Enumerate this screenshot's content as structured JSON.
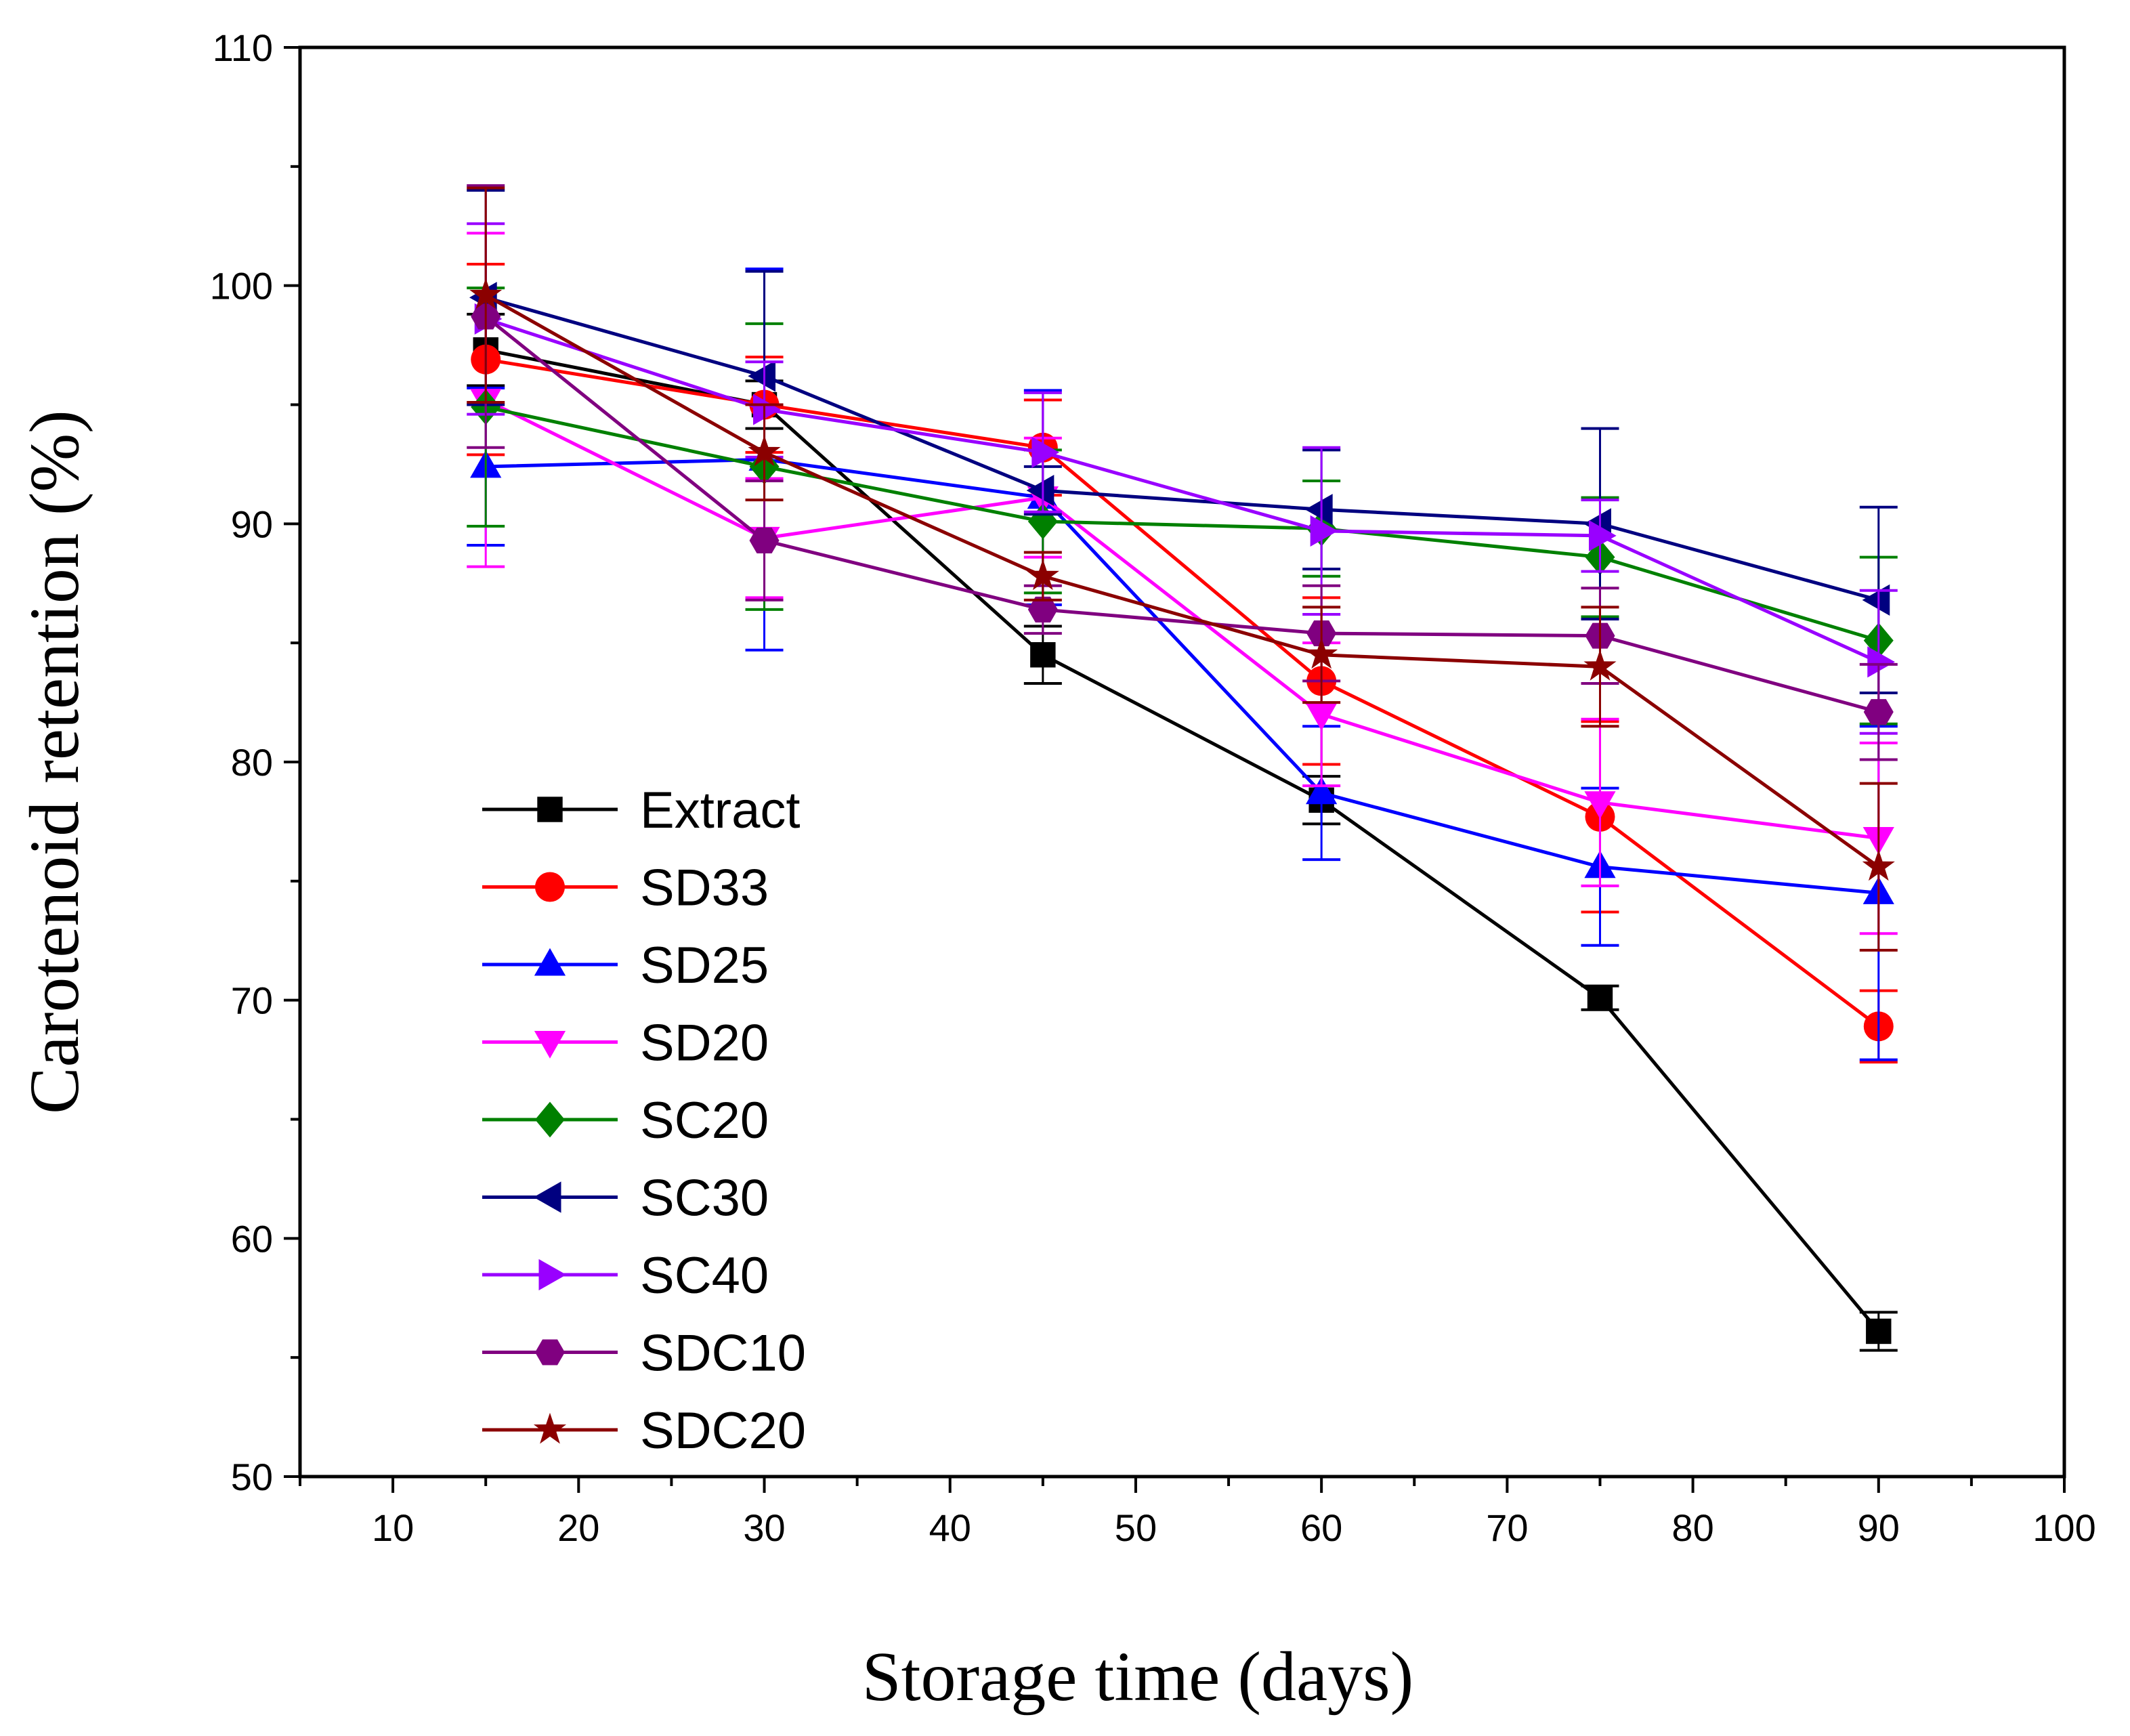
{
  "chart_data": {
    "type": "line",
    "title": "",
    "xlabel": "Storage time (days)",
    "ylabel": "Carotenoid retention (%)",
    "xlim": [
      5,
      100
    ],
    "ylim": [
      50,
      110
    ],
    "xticks": [
      10,
      20,
      30,
      40,
      50,
      60,
      70,
      80,
      90,
      100
    ],
    "yticks": [
      50,
      60,
      70,
      80,
      90,
      100,
      110
    ],
    "grid": false,
    "legend_position": "center-left",
    "x": [
      15,
      30,
      45,
      60,
      75,
      90
    ],
    "series": [
      {
        "name": "Extract",
        "color": "#000000",
        "marker": "square",
        "values": [
          97.3,
          95.0,
          84.5,
          78.4,
          70.1,
          56.1
        ],
        "errors": [
          1.5,
          1.0,
          1.2,
          1.0,
          0.5,
          0.8
        ]
      },
      {
        "name": "SD33",
        "color": "#ff0000",
        "marker": "circle",
        "values": [
          96.9,
          95.0,
          93.2,
          83.4,
          77.7,
          68.9
        ],
        "errors": [
          4.0,
          2.0,
          2.0,
          3.5,
          4.0,
          1.5
        ]
      },
      {
        "name": "SD25",
        "color": "#0000ff",
        "marker": "triangle-up",
        "values": [
          92.4,
          92.7,
          91.1,
          78.7,
          75.6,
          74.5
        ],
        "errors": [
          3.3,
          8.0,
          4.5,
          2.8,
          3.3,
          7.0
        ]
      },
      {
        "name": "SD20",
        "color": "#ff00ff",
        "marker": "triangle-down",
        "values": [
          95.2,
          89.4,
          91.1,
          82.0,
          78.3,
          76.8
        ],
        "errors": [
          7.0,
          2.5,
          2.5,
          3.0,
          3.5,
          4.0
        ]
      },
      {
        "name": "SC20",
        "color": "#008000",
        "marker": "diamond",
        "values": [
          94.9,
          92.4,
          90.1,
          89.8,
          88.6,
          85.1
        ],
        "errors": [
          5.0,
          6.0,
          3.0,
          2.0,
          2.5,
          3.5
        ]
      },
      {
        "name": "SC30",
        "color": "#000080",
        "marker": "triangle-left",
        "values": [
          99.5,
          96.2,
          91.4,
          90.6,
          90.0,
          86.8
        ],
        "errors": [
          4.5,
          4.4,
          1.0,
          2.5,
          4.0,
          3.9
        ]
      },
      {
        "name": "SC40",
        "color": "#9900ff",
        "marker": "triangle-right",
        "values": [
          98.6,
          94.8,
          93.0,
          89.7,
          89.5,
          84.2
        ],
        "errors": [
          4.0,
          2.0,
          2.5,
          3.5,
          1.5,
          3.0
        ]
      },
      {
        "name": "SDC10",
        "color": "#800080",
        "marker": "hexagon",
        "values": [
          98.7,
          89.3,
          86.4,
          85.4,
          85.3,
          82.1
        ],
        "errors": [
          5.5,
          2.5,
          1.0,
          2.0,
          2.0,
          2.0
        ]
      },
      {
        "name": "SDC20",
        "color": "#8b0000",
        "marker": "star",
        "values": [
          99.6,
          93.0,
          87.8,
          84.5,
          84.0,
          75.6
        ],
        "errors": [
          4.5,
          2.0,
          1.0,
          2.0,
          2.5,
          3.5
        ]
      }
    ]
  }
}
